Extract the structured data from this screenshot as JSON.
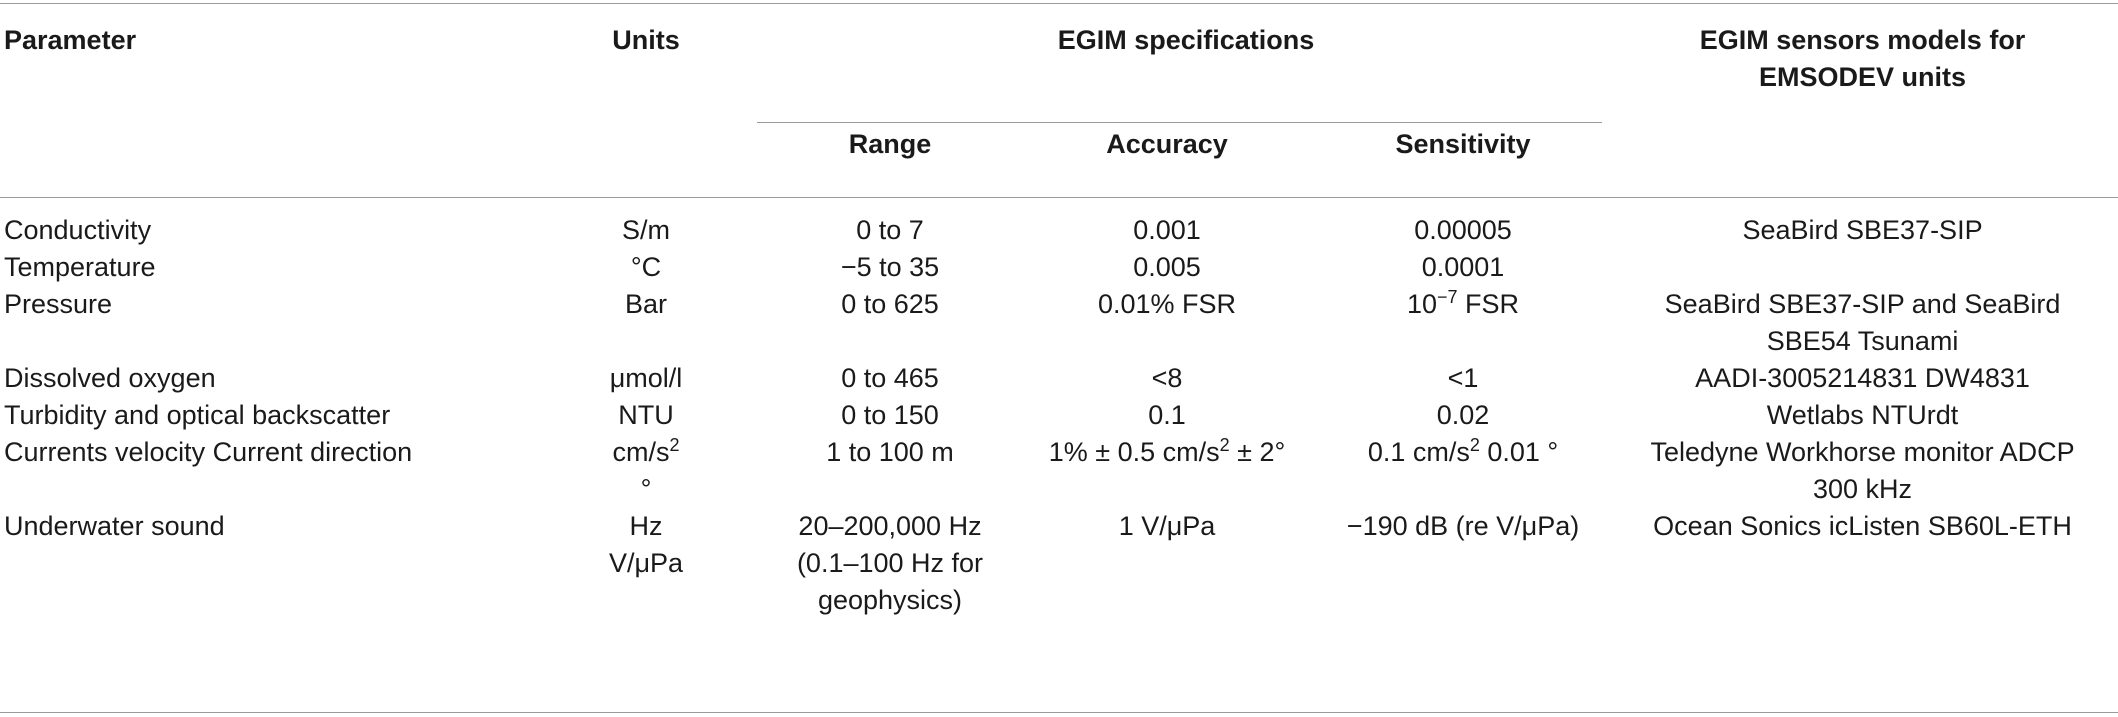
{
  "table": {
    "headers": {
      "parameter": "Parameter",
      "units": "Units",
      "specs_group": "EGIM specifications",
      "range": "Range",
      "accuracy": "Accuracy",
      "sensitivity": "Sensitivity",
      "sensors_line1": "EGIM sensors models for",
      "sensors_line2": "EMSODEV units"
    },
    "rows": [
      {
        "parameter": "Conductivity",
        "units_l1": "S/m",
        "units_l2": "",
        "range_l1": "0 to 7",
        "range_l2": "",
        "range_l3": "",
        "accuracy_pre": "0.001",
        "accuracy_sup": "",
        "accuracy_post": "",
        "sensitivity_pre": "0.00005",
        "sensitivity_sup": "",
        "sensitivity_post": "",
        "sensor_l1": "SeaBird SBE37-SIP",
        "sensor_l2": ""
      },
      {
        "parameter": "Temperature",
        "units_l1": "°C",
        "units_l2": "",
        "range_l1": "−5 to 35",
        "range_l2": "",
        "range_l3": "",
        "accuracy_pre": "0.005",
        "accuracy_sup": "",
        "accuracy_post": "",
        "sensitivity_pre": "0.0001",
        "sensitivity_sup": "",
        "sensitivity_post": "",
        "sensor_l1": "",
        "sensor_l2": ""
      },
      {
        "parameter": "Pressure",
        "units_l1": "Bar",
        "units_l2": "",
        "range_l1": "0 to 625",
        "range_l2": "",
        "range_l3": "",
        "accuracy_pre": "0.01% FSR",
        "accuracy_sup": "",
        "accuracy_post": "",
        "sensitivity_pre": "10",
        "sensitivity_sup": "−7",
        "sensitivity_post": " FSR",
        "sensor_l1": "SeaBird SBE37-SIP and SeaBird",
        "sensor_l2": "SBE54 Tsunami"
      },
      {
        "parameter": "Dissolved oxygen",
        "units_l1": "μmol/l",
        "units_l2": "",
        "range_l1": "0 to 465",
        "range_l2": "",
        "range_l3": "",
        "accuracy_pre": "<8",
        "accuracy_sup": "",
        "accuracy_post": "",
        "sensitivity_pre": "<1",
        "sensitivity_sup": "",
        "sensitivity_post": "",
        "sensor_l1": "AADI-3005214831 DW4831",
        "sensor_l2": ""
      },
      {
        "parameter": "Turbidity and optical backscatter",
        "units_l1": "NTU",
        "units_l2": "",
        "range_l1": "0 to 150",
        "range_l2": "",
        "range_l3": "",
        "accuracy_pre": "0.1",
        "accuracy_sup": "",
        "accuracy_post": "",
        "sensitivity_pre": "0.02",
        "sensitivity_sup": "",
        "sensitivity_post": "",
        "sensor_l1": "Wetlabs NTUrdt",
        "sensor_l2": ""
      },
      {
        "parameter": "Currents velocity Current direction",
        "units_l1": "cm/s",
        "units_sup": "2",
        "units_l2": "°",
        "range_l1": "1 to 100 m",
        "range_l2": "",
        "range_l3": "",
        "accuracy_pre": "1% ± 0.5 cm/s",
        "accuracy_sup": "2",
        "accuracy_post": "  ± 2°",
        "sensitivity_pre": "0.1 cm/s",
        "sensitivity_sup": "2",
        "sensitivity_post": " 0.01 °",
        "sensor_l1": "Teledyne Workhorse monitor ADCP",
        "sensor_l2": "300 kHz"
      },
      {
        "parameter": "Underwater sound",
        "units_l1": "Hz",
        "units_l2": "V/μPa",
        "range_l1": "20–200,000 Hz",
        "range_l2": "(0.1–100 Hz for",
        "range_l3": "geophysics)",
        "accuracy_pre": "1 V/μPa",
        "accuracy_sup": "",
        "accuracy_post": "",
        "sensitivity_pre": "−190 dB (re V/μPa)",
        "sensitivity_sup": "",
        "sensitivity_post": "",
        "sensor_l1": "Ocean Sonics icListen SB60L-ETH",
        "sensor_l2": ""
      }
    ]
  }
}
